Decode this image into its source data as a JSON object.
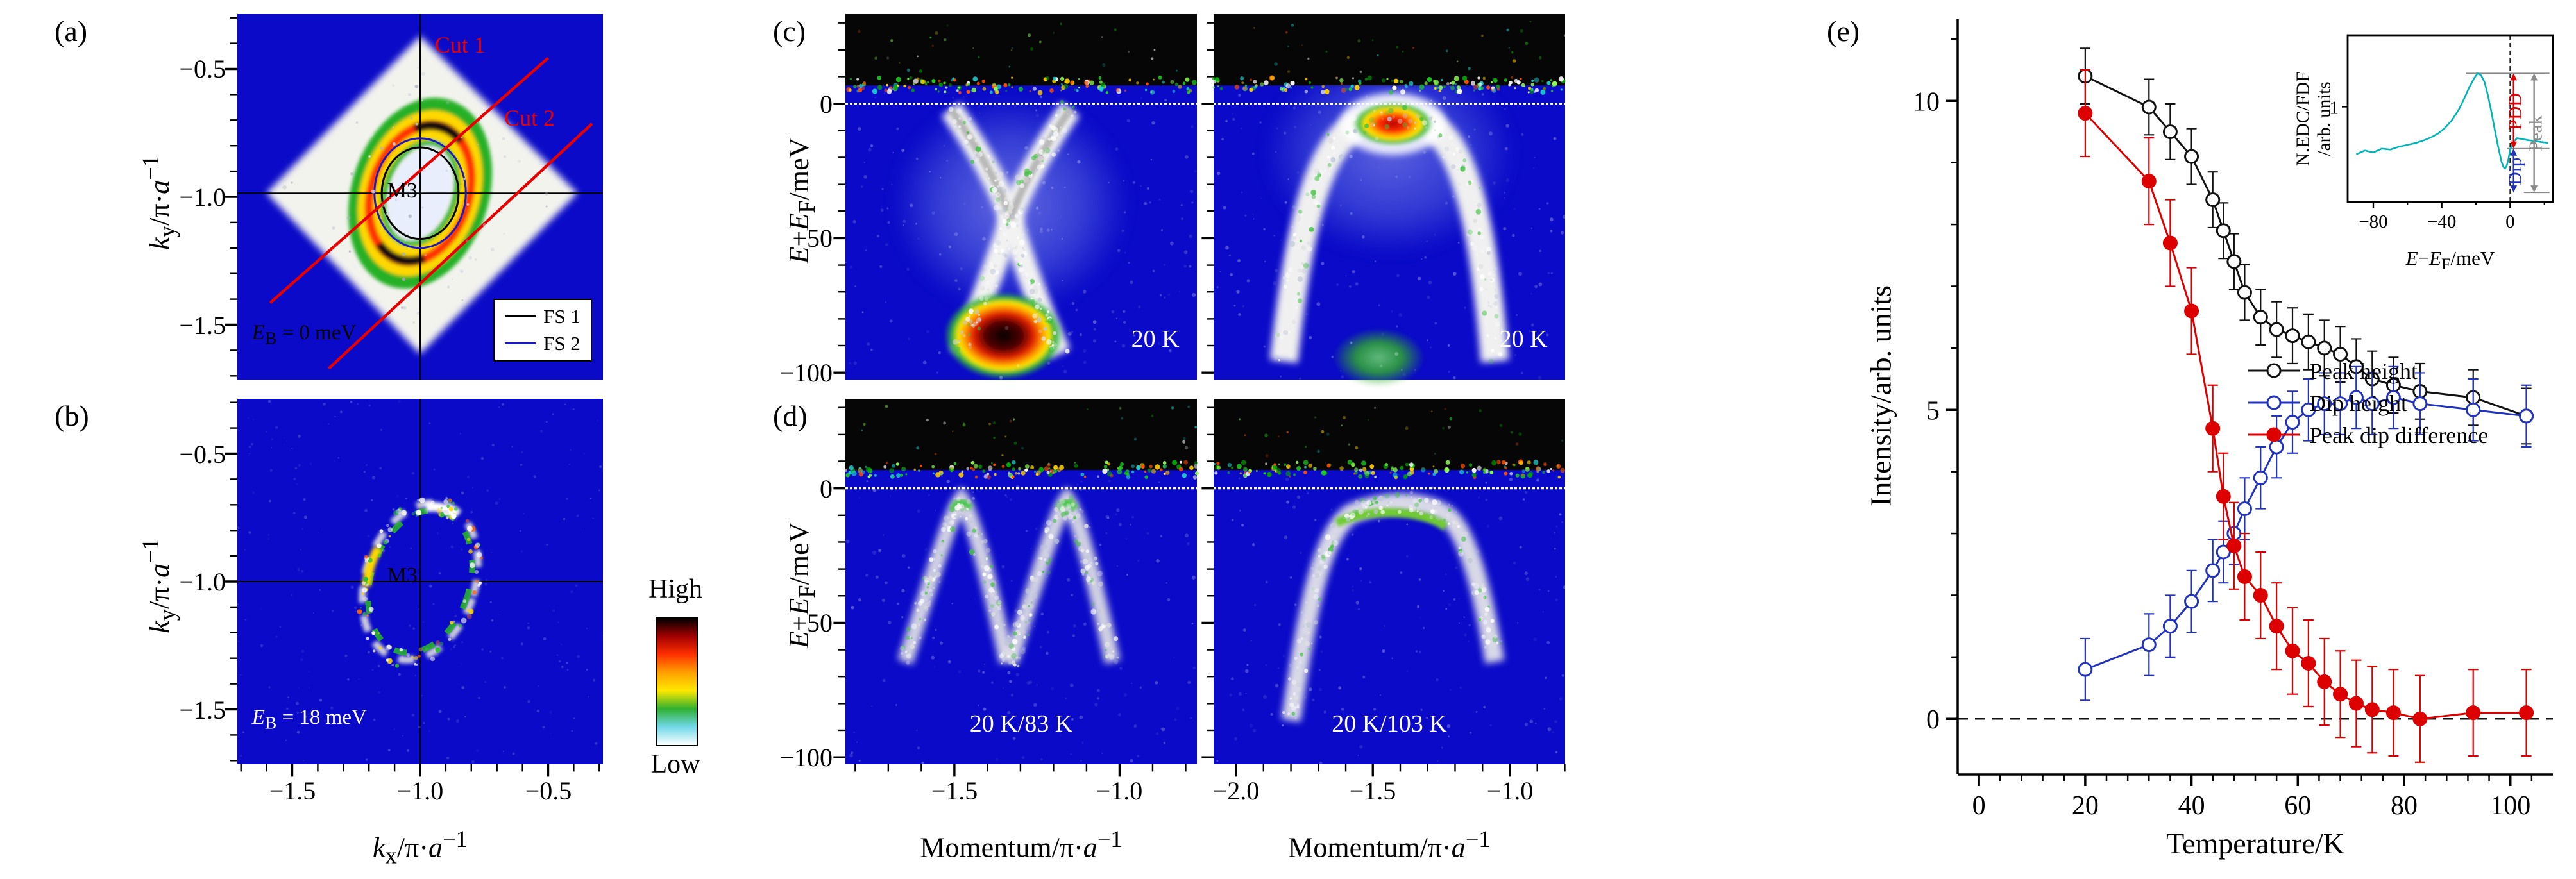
{
  "figure": {
    "map_bg": "#0a0ac8",
    "panels": {
      "a": {
        "tag": "(a)",
        "ylabel_html": "<i>k</i><sub>y</sub>/π·<i>a</i><sup>−1</sup>",
        "yticks": [
          "−0.5",
          "−1.0",
          "−1.5"
        ],
        "cut1": "Cut 1",
        "cut2": "Cut 2",
        "point_label": "M3",
        "energy_label_html": "<i>E</i><sub>B</sub> = 0 meV",
        "legend": [
          {
            "label": "FS 1",
            "color": "#000000"
          },
          {
            "label": "FS 2",
            "color": "#1a1ac0"
          }
        ]
      },
      "b": {
        "tag": "(b)",
        "ylabel_html": "<i>k</i><sub>y</sub>/π·<i>a</i><sup>−1</sup>",
        "yticks": [
          "−0.5",
          "−1.0",
          "−1.5"
        ],
        "xlabel_html": "<i>k</i><sub>x</sub>/π·<i>a</i><sup>−1</sup>",
        "xticks": [
          "−1.5",
          "−1.0",
          "−0.5"
        ],
        "point_label": "M3",
        "energy_label_html": "<i>E</i><sub>B</sub> = 18 meV"
      },
      "c": {
        "tag": "(c)",
        "ylabel_html": "<i>E</i>−<i>E</i><sub>F</sub>/meV",
        "yticks": [
          "0",
          "−50",
          "−100"
        ],
        "temp_left": "20 K",
        "temp_right": "20 K"
      },
      "d": {
        "tag": "(d)",
        "ylabel_html": "<i>E</i>−<i>E</i><sub>F</sub>/meV",
        "yticks": [
          "0",
          "−50",
          "−100"
        ],
        "xlabel_html": "Momentum/π·<i>a</i><sup>−1</sup>",
        "xticks_left": [
          "−1.5",
          "−1.0"
        ],
        "xticks_right": [
          "−2.0",
          "−1.5",
          "−1.0"
        ],
        "temp_left": "20 K/83 K",
        "temp_right": "20 K/103 K"
      },
      "e": {
        "tag": "(e)"
      }
    },
    "colorbar": {
      "high": "High",
      "low": "Low",
      "stops": [
        "#000000",
        "#a00000",
        "#ff3000",
        "#ffa000",
        "#ffe800",
        "#30b030",
        "#70d8e8",
        "#ffffff"
      ]
    }
  },
  "chart_data": [
    {
      "type": "line",
      "xlabel": "Temperature/K",
      "ylabel": "Intensity/arb. units",
      "xlim": [
        -4,
        108
      ],
      "ylim": [
        -0.9,
        11.3
      ],
      "xticks": [
        0,
        20,
        40,
        60,
        80,
        100
      ],
      "yticks": [
        0,
        5,
        10
      ],
      "grid": false,
      "zero_dashed_line": true,
      "legend_position": "center-right",
      "x": [
        20,
        32,
        36,
        40,
        44,
        46,
        48,
        50,
        53,
        56,
        59,
        62,
        65,
        68,
        71,
        74,
        78,
        83,
        93,
        103
      ],
      "series": [
        {
          "name": "Peak height",
          "color": "#111111",
          "marker": "open-circle",
          "yerr": 0.45,
          "values": [
            10.4,
            9.9,
            9.5,
            9.1,
            8.4,
            7.9,
            7.4,
            6.9,
            6.5,
            6.3,
            6.2,
            6.1,
            6.0,
            5.9,
            5.7,
            5.5,
            5.4,
            5.3,
            5.2,
            4.9
          ]
        },
        {
          "name": "Dip height",
          "color": "#2233bb",
          "marker": "open-circle",
          "yerr": 0.5,
          "values": [
            0.8,
            1.2,
            1.5,
            1.9,
            2.4,
            2.7,
            3.0,
            3.4,
            3.9,
            4.4,
            4.8,
            5.0,
            5.1,
            5.1,
            5.2,
            5.1,
            5.2,
            5.1,
            5.0,
            4.9
          ]
        },
        {
          "name": "Peak dip difference",
          "color": "#dd0000",
          "marker": "filled-circle",
          "yerr": 0.7,
          "values": [
            9.8,
            8.7,
            7.7,
            6.6,
            4.7,
            3.6,
            2.8,
            2.3,
            2.0,
            1.5,
            1.1,
            0.9,
            0.6,
            0.4,
            0.25,
            0.15,
            0.1,
            0.0,
            0.1,
            0.1
          ]
        }
      ]
    },
    {
      "type": "line",
      "xlabel_html": "<i>E</i>−<i>E</i><sub>F</sub>/meV",
      "ylabel_html": "N.EDC/FDF<br>/arb. units",
      "xlim": [
        -95,
        25
      ],
      "ylim": [
        0,
        1.75
      ],
      "xticks": [
        -80,
        -40,
        0
      ],
      "xtick_labels": [
        "−80",
        "−40",
        "0"
      ],
      "yticks": [
        1
      ],
      "ytick_labels": [
        "1"
      ],
      "curve_color": "#00b4b8",
      "vline_x": 0,
      "x": [
        -90,
        -85,
        -80,
        -75,
        -70,
        -65,
        -60,
        -55,
        -50,
        -46,
        -42,
        -38,
        -34,
        -30,
        -27,
        -24,
        -21,
        -19,
        -17,
        -15,
        -13,
        -11,
        -9,
        -7,
        -5,
        -4,
        -3,
        -2,
        -1,
        0,
        2,
        4,
        7,
        10,
        14,
        18,
        22
      ],
      "y": [
        0.5,
        0.54,
        0.52,
        0.56,
        0.55,
        0.58,
        0.6,
        0.62,
        0.65,
        0.68,
        0.72,
        0.78,
        0.86,
        0.97,
        1.08,
        1.2,
        1.3,
        1.35,
        1.33,
        1.26,
        1.12,
        0.95,
        0.76,
        0.58,
        0.42,
        0.37,
        0.35,
        0.38,
        0.45,
        0.55,
        0.63,
        0.67,
        0.66,
        0.65,
        0.64,
        0.63,
        0.62
      ],
      "hlines": [
        {
          "y": 1.35,
          "x1": -26,
          "x2": 23
        },
        {
          "y": 0.56,
          "x1": -2,
          "x2": 23
        },
        {
          "y": 0.1,
          "x1": 8,
          "x2": 23
        }
      ],
      "annotations": [
        {
          "label": "PDD",
          "color": "#dd0000",
          "arrow_x": 2,
          "y_top": 1.35,
          "y_bot": 0.56,
          "label_x": 6.5,
          "label_y": 0.95
        },
        {
          "label": "Dip",
          "color": "#2233bb",
          "arrow_x": 2,
          "y_top": 0.56,
          "y_bot": 0.1,
          "label_x": 6.5,
          "label_y": 0.32
        },
        {
          "label": "Peak",
          "color": "#8a8a8a",
          "arrow_x": 14,
          "y_top": 1.35,
          "y_bot": 0.1,
          "label_x": 18.5,
          "label_y": 0.72
        }
      ]
    }
  ]
}
